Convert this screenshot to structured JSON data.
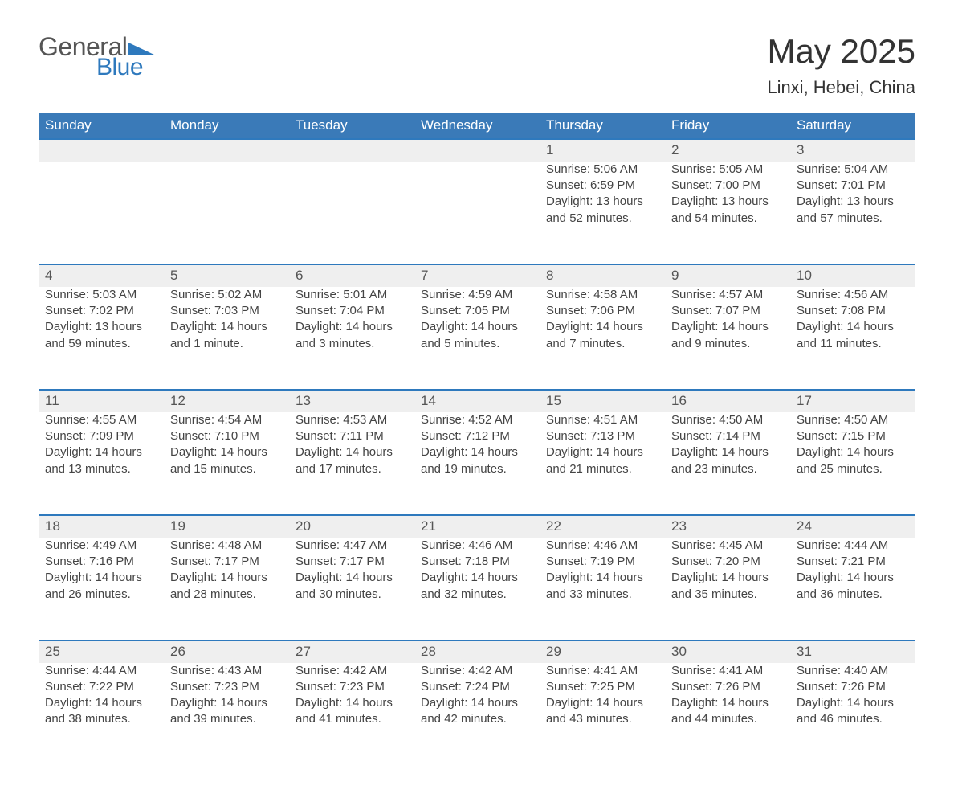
{
  "brand": {
    "word1": "General",
    "word2": "Blue",
    "logo_color": "#2e79bd"
  },
  "title": "May 2025",
  "location": "Linxi, Hebei, China",
  "colors": {
    "header_bg": "#3a7ab8",
    "header_text": "#ffffff",
    "row_stripe": "#efefef",
    "row_border": "#2e79bd",
    "body_text": "#444444",
    "page_bg": "#ffffff"
  },
  "typography": {
    "title_fontsize": 42,
    "location_fontsize": 22,
    "dayheader_fontsize": 17,
    "body_fontsize": 15
  },
  "layout": {
    "columns": 7,
    "week_rows": 5,
    "first_day_column_index": 4
  },
  "day_headers": [
    "Sunday",
    "Monday",
    "Tuesday",
    "Wednesday",
    "Thursday",
    "Friday",
    "Saturday"
  ],
  "labels": {
    "sunrise": "Sunrise:",
    "sunset": "Sunset:",
    "daylight": "Daylight:"
  },
  "days": [
    {
      "n": 1,
      "sunrise": "5:06 AM",
      "sunset": "6:59 PM",
      "daylight": "13 hours and 52 minutes."
    },
    {
      "n": 2,
      "sunrise": "5:05 AM",
      "sunset": "7:00 PM",
      "daylight": "13 hours and 54 minutes."
    },
    {
      "n": 3,
      "sunrise": "5:04 AM",
      "sunset": "7:01 PM",
      "daylight": "13 hours and 57 minutes."
    },
    {
      "n": 4,
      "sunrise": "5:03 AM",
      "sunset": "7:02 PM",
      "daylight": "13 hours and 59 minutes."
    },
    {
      "n": 5,
      "sunrise": "5:02 AM",
      "sunset": "7:03 PM",
      "daylight": "14 hours and 1 minute."
    },
    {
      "n": 6,
      "sunrise": "5:01 AM",
      "sunset": "7:04 PM",
      "daylight": "14 hours and 3 minutes."
    },
    {
      "n": 7,
      "sunrise": "4:59 AM",
      "sunset": "7:05 PM",
      "daylight": "14 hours and 5 minutes."
    },
    {
      "n": 8,
      "sunrise": "4:58 AM",
      "sunset": "7:06 PM",
      "daylight": "14 hours and 7 minutes."
    },
    {
      "n": 9,
      "sunrise": "4:57 AM",
      "sunset": "7:07 PM",
      "daylight": "14 hours and 9 minutes."
    },
    {
      "n": 10,
      "sunrise": "4:56 AM",
      "sunset": "7:08 PM",
      "daylight": "14 hours and 11 minutes."
    },
    {
      "n": 11,
      "sunrise": "4:55 AM",
      "sunset": "7:09 PM",
      "daylight": "14 hours and 13 minutes."
    },
    {
      "n": 12,
      "sunrise": "4:54 AM",
      "sunset": "7:10 PM",
      "daylight": "14 hours and 15 minutes."
    },
    {
      "n": 13,
      "sunrise": "4:53 AM",
      "sunset": "7:11 PM",
      "daylight": "14 hours and 17 minutes."
    },
    {
      "n": 14,
      "sunrise": "4:52 AM",
      "sunset": "7:12 PM",
      "daylight": "14 hours and 19 minutes."
    },
    {
      "n": 15,
      "sunrise": "4:51 AM",
      "sunset": "7:13 PM",
      "daylight": "14 hours and 21 minutes."
    },
    {
      "n": 16,
      "sunrise": "4:50 AM",
      "sunset": "7:14 PM",
      "daylight": "14 hours and 23 minutes."
    },
    {
      "n": 17,
      "sunrise": "4:50 AM",
      "sunset": "7:15 PM",
      "daylight": "14 hours and 25 minutes."
    },
    {
      "n": 18,
      "sunrise": "4:49 AM",
      "sunset": "7:16 PM",
      "daylight": "14 hours and 26 minutes."
    },
    {
      "n": 19,
      "sunrise": "4:48 AM",
      "sunset": "7:17 PM",
      "daylight": "14 hours and 28 minutes."
    },
    {
      "n": 20,
      "sunrise": "4:47 AM",
      "sunset": "7:17 PM",
      "daylight": "14 hours and 30 minutes."
    },
    {
      "n": 21,
      "sunrise": "4:46 AM",
      "sunset": "7:18 PM",
      "daylight": "14 hours and 32 minutes."
    },
    {
      "n": 22,
      "sunrise": "4:46 AM",
      "sunset": "7:19 PM",
      "daylight": "14 hours and 33 minutes."
    },
    {
      "n": 23,
      "sunrise": "4:45 AM",
      "sunset": "7:20 PM",
      "daylight": "14 hours and 35 minutes."
    },
    {
      "n": 24,
      "sunrise": "4:44 AM",
      "sunset": "7:21 PM",
      "daylight": "14 hours and 36 minutes."
    },
    {
      "n": 25,
      "sunrise": "4:44 AM",
      "sunset": "7:22 PM",
      "daylight": "14 hours and 38 minutes."
    },
    {
      "n": 26,
      "sunrise": "4:43 AM",
      "sunset": "7:23 PM",
      "daylight": "14 hours and 39 minutes."
    },
    {
      "n": 27,
      "sunrise": "4:42 AM",
      "sunset": "7:23 PM",
      "daylight": "14 hours and 41 minutes."
    },
    {
      "n": 28,
      "sunrise": "4:42 AM",
      "sunset": "7:24 PM",
      "daylight": "14 hours and 42 minutes."
    },
    {
      "n": 29,
      "sunrise": "4:41 AM",
      "sunset": "7:25 PM",
      "daylight": "14 hours and 43 minutes."
    },
    {
      "n": 30,
      "sunrise": "4:41 AM",
      "sunset": "7:26 PM",
      "daylight": "14 hours and 44 minutes."
    },
    {
      "n": 31,
      "sunrise": "4:40 AM",
      "sunset": "7:26 PM",
      "daylight": "14 hours and 46 minutes."
    }
  ]
}
